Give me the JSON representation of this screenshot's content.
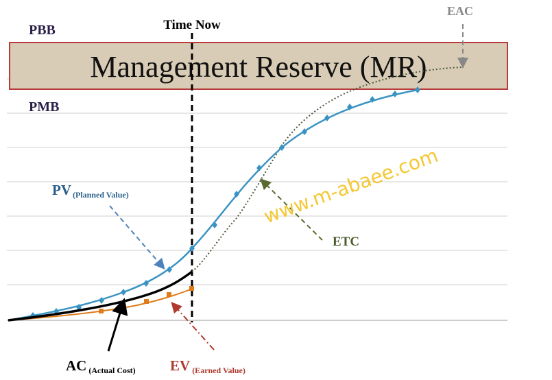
{
  "labels": {
    "pbb": "PBB",
    "time_now": "Time Now",
    "eac": "EAC",
    "mr": "Management Reserve (MR)",
    "pmb": "PMB",
    "pv": "PV",
    "pv_sub": "(Planned Value)",
    "etc": "ETC",
    "ac": "AC",
    "ac_sub": "(Actual Cost)",
    "ev": "EV",
    "ev_sub": "(Earned Value)",
    "watermark": "www.m-abaee.com"
  }
}
